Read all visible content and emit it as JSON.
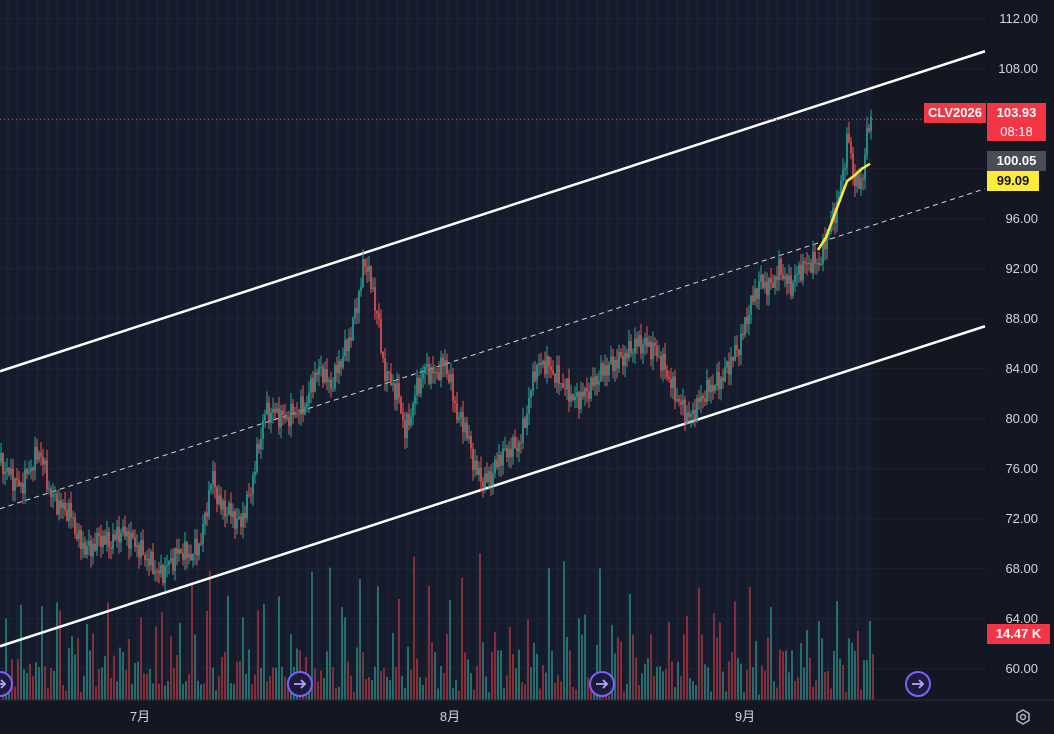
{
  "chart_data": {
    "type": "candlestick",
    "symbol": "CLV2026",
    "last_price": "103.93",
    "countdown": "08:18",
    "ma_price": "100.05",
    "ma2_price": "99.09",
    "volume_label": "14.47 K",
    "y_ticks": [
      "112.00",
      "108.00",
      "104.00",
      "100.00",
      "96.00",
      "92.00",
      "88.00",
      "84.00",
      "80.00",
      "76.00",
      "72.00",
      "68.00",
      "64.00",
      "60.00"
    ],
    "y_tick_values": [
      112,
      108,
      104,
      100,
      96,
      92,
      88,
      84,
      80,
      76,
      72,
      68,
      64,
      60
    ],
    "x_ticks": [
      "7月",
      "8月",
      "9月"
    ],
    "ylim": [
      57.5,
      113.5
    ],
    "price_path": [
      [
        0,
        76.5
      ],
      [
        10,
        75.5
      ],
      [
        20,
        74.5
      ],
      [
        30,
        76
      ],
      [
        40,
        77.5
      ],
      [
        50,
        74
      ],
      [
        60,
        73
      ],
      [
        70,
        72.5
      ],
      [
        80,
        70
      ],
      [
        90,
        69.5
      ],
      [
        100,
        70.5
      ],
      [
        110,
        70
      ],
      [
        120,
        71
      ],
      [
        130,
        70.5
      ],
      [
        140,
        69.5
      ],
      [
        150,
        68.5
      ],
      [
        160,
        67.5
      ],
      [
        170,
        68.5
      ],
      [
        180,
        69.5
      ],
      [
        190,
        69
      ],
      [
        200,
        70
      ],
      [
        205,
        72
      ],
      [
        212,
        75.5
      ],
      [
        220,
        73
      ],
      [
        230,
        72.5
      ],
      [
        240,
        71.5
      ],
      [
        250,
        74
      ],
      [
        258,
        77.5
      ],
      [
        265,
        80.5
      ],
      [
        275,
        80.5
      ],
      [
        285,
        80
      ],
      [
        295,
        80.5
      ],
      [
        305,
        81
      ],
      [
        315,
        83.5
      ],
      [
        322,
        84
      ],
      [
        330,
        82.5
      ],
      [
        340,
        84.5
      ],
      [
        350,
        86.5
      ],
      [
        358,
        89.5
      ],
      [
        363,
        92
      ],
      [
        368,
        92.5
      ],
      [
        372,
        90
      ],
      [
        378,
        88.5
      ],
      [
        382,
        84.5
      ],
      [
        390,
        83
      ],
      [
        398,
        82
      ],
      [
        405,
        79
      ],
      [
        410,
        80
      ],
      [
        415,
        82
      ],
      [
        425,
        84
      ],
      [
        435,
        83.5
      ],
      [
        445,
        84.5
      ],
      [
        450,
        83
      ],
      [
        458,
        80
      ],
      [
        465,
        79.5
      ],
      [
        472,
        77
      ],
      [
        478,
        75.5
      ],
      [
        485,
        75
      ],
      [
        492,
        75.5
      ],
      [
        500,
        77
      ],
      [
        510,
        77.5
      ],
      [
        520,
        78
      ],
      [
        528,
        81
      ],
      [
        535,
        84
      ],
      [
        545,
        84.5
      ],
      [
        555,
        83.5
      ],
      [
        565,
        82.5
      ],
      [
        575,
        81.5
      ],
      [
        585,
        82
      ],
      [
        595,
        83
      ],
      [
        605,
        84
      ],
      [
        615,
        84.5
      ],
      [
        625,
        85
      ],
      [
        635,
        86
      ],
      [
        645,
        86
      ],
      [
        655,
        85.5
      ],
      [
        665,
        84
      ],
      [
        675,
        82
      ],
      [
        685,
        80.5
      ],
      [
        690,
        80
      ],
      [
        700,
        81.5
      ],
      [
        710,
        82.5
      ],
      [
        720,
        83
      ],
      [
        730,
        84.5
      ],
      [
        740,
        86
      ],
      [
        750,
        89
      ],
      [
        760,
        91
      ],
      [
        770,
        90.5
      ],
      [
        780,
        92
      ],
      [
        790,
        90.5
      ],
      [
        800,
        92
      ],
      [
        810,
        92.5
      ],
      [
        820,
        92.5
      ],
      [
        828,
        95
      ],
      [
        835,
        96.5
      ],
      [
        842,
        99
      ],
      [
        848,
        103
      ],
      [
        852,
        100
      ],
      [
        858,
        98.5
      ],
      [
        862,
        99
      ],
      [
        866,
        102
      ],
      [
        870,
        103.93
      ]
    ],
    "volumes": [
      2,
      5,
      1,
      8,
      3,
      4,
      6,
      2,
      3,
      9,
      4,
      3,
      2,
      7,
      5,
      3,
      4,
      2,
      6,
      8,
      3,
      2,
      5,
      4,
      3,
      7,
      2,
      4,
      6,
      3,
      5,
      2,
      8,
      4,
      3,
      6,
      2,
      9,
      4,
      5,
      3,
      2,
      7,
      4,
      6,
      3,
      5,
      2,
      4,
      8
    ],
    "channel": {
      "upper": [
        [
          0,
          83.8
        ],
        [
          985,
          109.4
        ]
      ],
      "lower": [
        [
          0,
          61.8
        ],
        [
          985,
          87.4
        ]
      ],
      "mid": [
        [
          0,
          72.8
        ],
        [
          985,
          98.4
        ]
      ]
    },
    "ma_path": [
      [
        818,
        93.5
      ],
      [
        826,
        94.5
      ],
      [
        833,
        96
      ],
      [
        840,
        97.5
      ],
      [
        847,
        99
      ],
      [
        855,
        99.5
      ],
      [
        862,
        100
      ],
      [
        870,
        100.4
      ]
    ]
  }
}
